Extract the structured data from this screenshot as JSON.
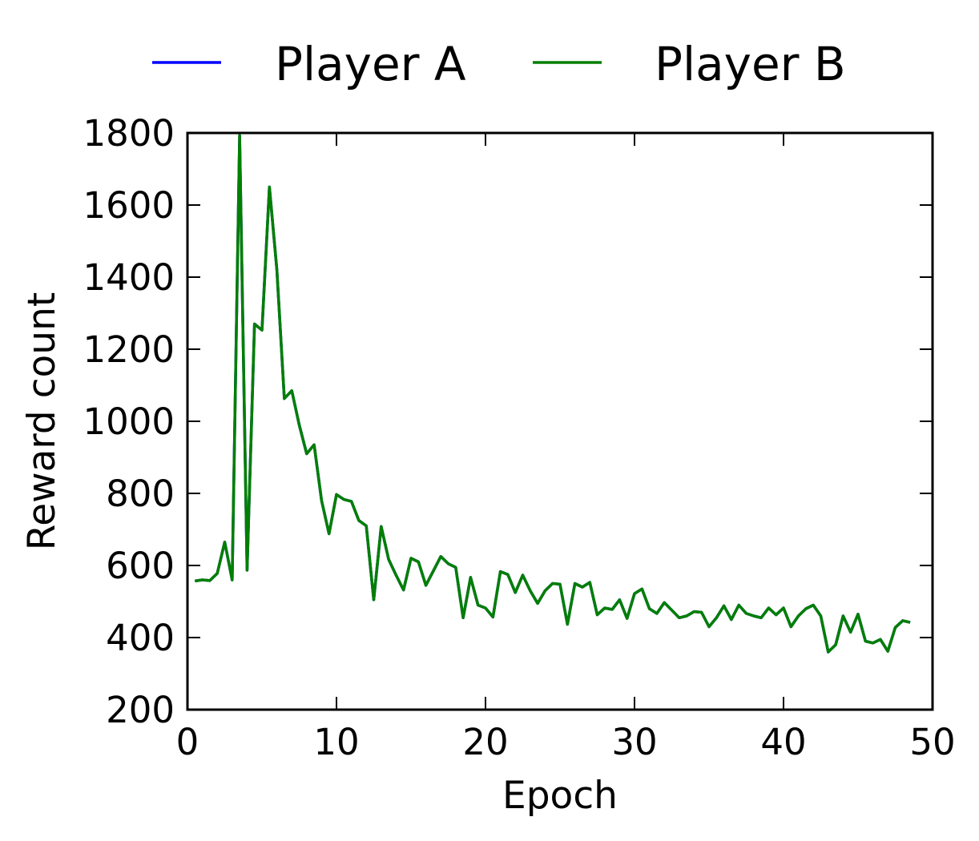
{
  "chart_data": {
    "type": "line",
    "title": "",
    "xlabel": "Epoch",
    "ylabel": "Reward count",
    "xlim": [
      0,
      50
    ],
    "ylim": [
      200,
      1800
    ],
    "xticks": [
      0,
      10,
      20,
      30,
      40,
      50
    ],
    "yticks": [
      200,
      400,
      600,
      800,
      1000,
      1200,
      1400,
      1600,
      1800
    ],
    "xtick_labels": [
      "0",
      "10",
      "20",
      "30",
      "40",
      "50"
    ],
    "ytick_labels": [
      "200",
      "400",
      "600",
      "800",
      "1000",
      "1200",
      "1400",
      "1600",
      "1800"
    ],
    "grid": false,
    "legend_position": "top-center (above plot)",
    "x": [
      0.5,
      1,
      1.5,
      2,
      2.5,
      3,
      3.5,
      4,
      4.5,
      5,
      5.5,
      6,
      6.5,
      7,
      7.5,
      8,
      8.5,
      9,
      9.5,
      10,
      10.5,
      11,
      11.5,
      12,
      12.5,
      13,
      13.5,
      14,
      14.5,
      15,
      15.5,
      16,
      16.5,
      17,
      17.5,
      18,
      18.5,
      19,
      19.5,
      20,
      20.5,
      21,
      21.5,
      22,
      22.5,
      23,
      23.5,
      24,
      24.5,
      25,
      25.5,
      26,
      26.5,
      27,
      27.5,
      28,
      28.5,
      29,
      29.5,
      30,
      30.5,
      31,
      31.5,
      32,
      32.5,
      33,
      33.5,
      34,
      34.5,
      35,
      35.5,
      36,
      36.5,
      37,
      37.5,
      38,
      38.5,
      39,
      39.5,
      40,
      40.5,
      41,
      41.5,
      42,
      42.5,
      43,
      43.5,
      44,
      44.5,
      45,
      45.5,
      46,
      46.5,
      47,
      47.5,
      48,
      48.5
    ],
    "series": [
      {
        "name": "Player A",
        "color": "#0000ff",
        "values": [
          557,
          560,
          558,
          578,
          665,
          560,
          1793,
          587,
          1270,
          1253,
          1650,
          1420,
          1063,
          1085,
          990,
          910,
          935,
          780,
          688,
          797,
          783,
          778,
          725,
          710,
          505,
          708,
          617,
          573,
          532,
          620,
          610,
          545,
          585,
          625,
          605,
          595,
          455,
          567,
          490,
          482,
          457,
          583,
          575,
          525,
          573,
          530,
          495,
          530,
          550,
          548,
          437,
          550,
          540,
          553,
          463,
          482,
          478,
          505,
          453,
          522,
          535,
          480,
          467,
          497,
          476,
          455,
          460,
          472,
          470,
          430,
          455,
          488,
          450,
          490,
          467,
          460,
          455,
          482,
          463,
          482,
          430,
          460,
          480,
          490,
          460,
          360,
          380,
          460,
          415,
          465,
          390,
          385,
          395,
          362,
          428,
          447,
          442
        ]
      },
      {
        "name": "Player B",
        "color": "#007f00",
        "values": [
          557,
          560,
          558,
          578,
          665,
          560,
          1793,
          587,
          1270,
          1253,
          1650,
          1420,
          1063,
          1085,
          990,
          910,
          935,
          780,
          688,
          797,
          783,
          778,
          725,
          710,
          505,
          708,
          617,
          573,
          532,
          620,
          610,
          545,
          585,
          625,
          605,
          595,
          455,
          567,
          490,
          482,
          457,
          583,
          575,
          525,
          573,
          530,
          495,
          530,
          550,
          548,
          437,
          550,
          540,
          553,
          463,
          482,
          478,
          505,
          453,
          522,
          535,
          480,
          467,
          497,
          476,
          455,
          460,
          472,
          470,
          430,
          455,
          488,
          450,
          490,
          467,
          460,
          455,
          482,
          463,
          482,
          430,
          460,
          480,
          490,
          460,
          360,
          380,
          460,
          415,
          465,
          390,
          385,
          395,
          362,
          428,
          447,
          442
        ]
      }
    ]
  }
}
